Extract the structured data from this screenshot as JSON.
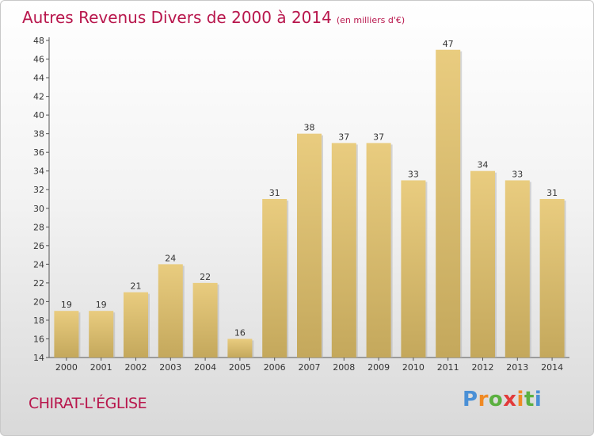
{
  "chart_data": {
    "type": "bar",
    "title": "Autres Revenus Divers de 2000 à 2014",
    "subtitle": "(en milliers d'€)",
    "categories": [
      "2000",
      "2001",
      "2002",
      "2003",
      "2004",
      "2005",
      "2006",
      "2007",
      "2008",
      "2009",
      "2010",
      "2011",
      "2012",
      "2013",
      "2014"
    ],
    "values": [
      19,
      19,
      21,
      24,
      22,
      16,
      31,
      38,
      37,
      37,
      33,
      47,
      34,
      33,
      31
    ],
    "ylim": [
      14,
      48
    ],
    "yticks": [
      14,
      16,
      18,
      20,
      22,
      24,
      26,
      28,
      30,
      32,
      34,
      36,
      38,
      40,
      42,
      44,
      46,
      48
    ],
    "data_labels": true,
    "grid": false,
    "bar_color": "#e9cc7f",
    "bar_color_dark": "#c4a85c"
  },
  "footer": {
    "place": "CHIRAT-L'ÉGLISE",
    "logo_letters": [
      "P",
      "r",
      "o",
      "x",
      "i",
      "t",
      "i"
    ],
    "logo_colors": [
      "#4a90d6",
      "#f08a24",
      "#5bb040",
      "#e23a3a",
      "#f08a24",
      "#5bb040",
      "#4a90d6"
    ]
  },
  "colors": {
    "title": "#b8164c",
    "axis": "#555555"
  }
}
